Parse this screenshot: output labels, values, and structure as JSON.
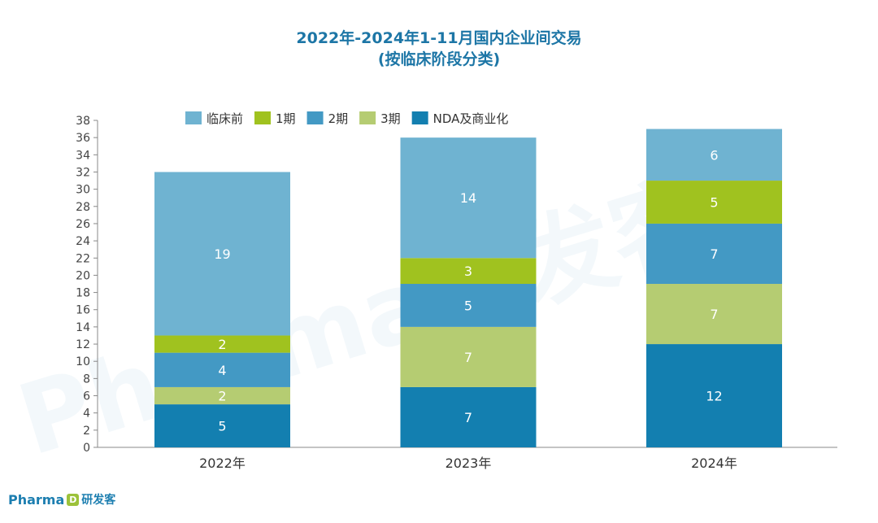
{
  "chart_data": {
    "type": "bar",
    "stacked": true,
    "title": "2022年-2024年1-11月国内企业间交易",
    "subtitle": "(按临床阶段分类)",
    "categories": [
      "2022年",
      "2023年",
      "2024年"
    ],
    "series": [
      {
        "name": "NDA及商业化",
        "values": [
          5,
          7,
          12
        ],
        "color": "#137fb0"
      },
      {
        "name": "3期",
        "values": [
          2,
          7,
          7
        ],
        "color": "#b5cc72"
      },
      {
        "name": "2期",
        "values": [
          4,
          5,
          7
        ],
        "color": "#4399c4"
      },
      {
        "name": "1期",
        "values": [
          2,
          3,
          5
        ],
        "color": "#a0c21f"
      },
      {
        "name": "临床前",
        "values": [
          19,
          14,
          6
        ],
        "color": "#6fb3d1"
      }
    ],
    "legend_order": [
      "临床前",
      "1期",
      "2期",
      "3期",
      "NDA及商业化"
    ],
    "legend_position": "top",
    "ylim": [
      0,
      38
    ],
    "ytick_step": 2,
    "grid": false
  },
  "watermark": "Pharma研发客",
  "logo": {
    "latin": "Pharma",
    "mark": "D",
    "chinese": "研发客"
  }
}
